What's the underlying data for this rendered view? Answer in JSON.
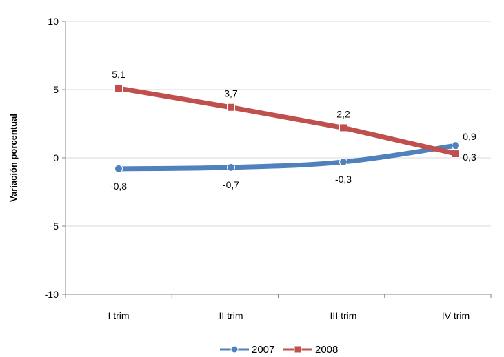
{
  "chart_data": {
    "type": "line",
    "title": "",
    "xlabel": "",
    "ylabel": "Variación porcentual",
    "categories": [
      "I trim",
      "II trim",
      "III trim",
      "IV trim"
    ],
    "ylim": [
      -10,
      10
    ],
    "yticks": [
      "10",
      "5",
      "0",
      "-5",
      "-10"
    ],
    "grid": true,
    "legend": "bottom",
    "series": [
      {
        "name": "2007",
        "values": [
          -0.8,
          -0.7,
          -0.3,
          0.9
        ],
        "labels": [
          "-0,8",
          "-0,7",
          "-0,3",
          "0,9"
        ],
        "color": "#4f81bd",
        "marker": "circle",
        "smooth": true
      },
      {
        "name": "2008",
        "values": [
          5.1,
          3.7,
          2.2,
          0.3
        ],
        "labels": [
          "5,1",
          "3,7",
          "2,2",
          "0,3"
        ],
        "color": "#c0504d",
        "marker": "square",
        "smooth": false
      }
    ]
  }
}
